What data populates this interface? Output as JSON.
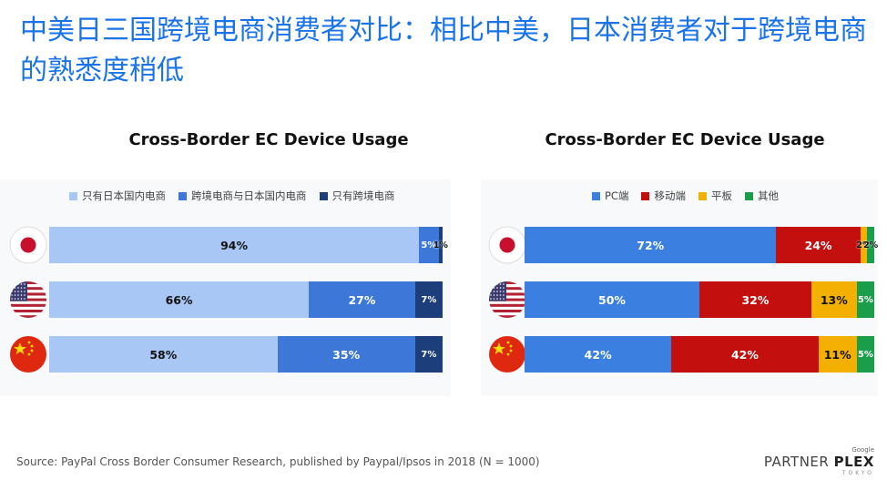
{
  "headline": "中美日三国跨境电商消费者对比：相比中美，日本消费者对于跨境电商的熟悉度稍低",
  "source": "Source: PayPal Cross Border Consumer Research, published by Paypal/Ipsos in 2018 (N = 1000)",
  "logo": {
    "google": "Google",
    "partner": "PARTNER",
    "plex": "PLEX",
    "tokyo": "TOKYO"
  },
  "chart_data": [
    {
      "type": "bar",
      "orientation": "horizontal-stacked",
      "title": "Cross-Border EC Device Usage",
      "categories": [
        "Japan",
        "USA",
        "China"
      ],
      "flag_icons": [
        "japan-flag-icon",
        "usa-flag-icon",
        "china-flag-icon"
      ],
      "series": [
        {
          "name": "只有日本国内电商",
          "color": "#a8c7f5",
          "values": [
            94,
            66,
            58
          ],
          "labels": [
            "94%",
            "66%",
            "58%"
          ]
        },
        {
          "name": "跨境电商与日本国内电商",
          "color": "#3d78d8",
          "values": [
            5,
            27,
            35
          ],
          "labels": [
            "5%",
            "27%",
            "35%"
          ]
        },
        {
          "name": "只有跨境电商",
          "color": "#1c3f7c",
          "values": [
            1,
            7,
            7
          ],
          "labels": [
            "1%",
            "7%",
            "7%"
          ]
        }
      ],
      "xlim": [
        0,
        100
      ]
    },
    {
      "type": "bar",
      "orientation": "horizontal-stacked",
      "title": "Cross-Border EC Device Usage",
      "categories": [
        "Japan",
        "USA",
        "China"
      ],
      "flag_icons": [
        "japan-flag-icon",
        "usa-flag-icon",
        "china-flag-icon"
      ],
      "series": [
        {
          "name": "PC端",
          "color": "#3b7fe0",
          "values": [
            72,
            50,
            42
          ],
          "labels": [
            "72%",
            "50%",
            "42%"
          ]
        },
        {
          "name": "移动端",
          "color": "#c40f0f",
          "values": [
            24,
            32,
            42
          ],
          "labels": [
            "24%",
            "32%",
            "42%"
          ]
        },
        {
          "name": "平板",
          "color": "#f3b000",
          "values": [
            2,
            13,
            11
          ],
          "labels": [
            "2%",
            "13%",
            "11%"
          ]
        },
        {
          "name": "其他",
          "color": "#1b9e4b",
          "values": [
            2,
            5,
            5
          ],
          "labels": [
            "2%",
            "5%",
            "5%"
          ]
        }
      ],
      "xlim": [
        0,
        100
      ]
    }
  ]
}
